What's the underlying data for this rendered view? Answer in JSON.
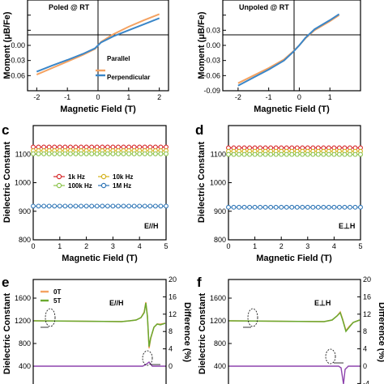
{
  "chart_data": [
    {
      "id": "a",
      "type": "line",
      "panel_label": "",
      "xlabel": "Magnetic Field (T)",
      "ylabel": "Moment (μB/Fe)",
      "xlim": [
        -2.3,
        2.3
      ],
      "ylim": [
        -0.09,
        0.09
      ],
      "xticks": [
        -2,
        -1,
        0,
        1,
        2
      ],
      "yticks": [
        -0.06,
        -0.03,
        0.0,
        0.03,
        0.06
      ],
      "ytick_labels": [
        "-0.06",
        "-0.03",
        "0.00",
        "",
        ""
      ],
      "annotations": [
        "Poled @ RT"
      ],
      "legend": [
        "Parallel",
        "Perpendicular"
      ],
      "series": [
        {
          "name": "Parallel",
          "color": "#f4a261",
          "x": [
            -2,
            -1.5,
            -1,
            -0.5,
            -0.1,
            0,
            0.1,
            0.5,
            1,
            1.5,
            2
          ],
          "y": [
            -0.058,
            -0.045,
            -0.032,
            -0.019,
            -0.007,
            0,
            0.007,
            0.022,
            0.037,
            0.05,
            0.062
          ]
        },
        {
          "name": "Perpendicular",
          "color": "#3a86c8",
          "x": [
            -2,
            -1.5,
            -1,
            -0.5,
            -0.1,
            0,
            0.1,
            0.5,
            1,
            1.5,
            2
          ],
          "y": [
            -0.052,
            -0.04,
            -0.029,
            -0.017,
            -0.006,
            0,
            0.006,
            0.018,
            0.03,
            0.042,
            0.054
          ]
        }
      ]
    },
    {
      "id": "b",
      "type": "line",
      "panel_label": "",
      "xlabel": "Magnetic Field (T)",
      "ylabel": "Moment (μB/Fe)",
      "xlim": [
        -2.5,
        2.0
      ],
      "ylim": [
        -0.09,
        0.09
      ],
      "xticks": [
        -2,
        -1,
        0,
        1
      ],
      "yticks": [
        -0.09,
        -0.06,
        -0.03,
        0.0,
        0.03,
        0.06
      ],
      "ytick_labels": [
        "-0.09",
        "-0.06",
        "-0.03",
        "0.00",
        "0.03",
        ""
      ],
      "annotations": [
        "Unpoled @ RT"
      ],
      "series": [
        {
          "name": "Parallel",
          "color": "#f4a261",
          "x": [
            -2,
            -1.5,
            -1,
            -0.5,
            -0.2,
            0,
            0.2,
            0.5,
            1,
            1.3
          ],
          "y": [
            -0.075,
            -0.06,
            -0.045,
            -0.028,
            -0.012,
            0,
            0.014,
            0.03,
            0.048,
            0.06
          ]
        },
        {
          "name": "Perpendicular",
          "color": "#3a86c8",
          "x": [
            -2,
            -1.5,
            -1,
            -0.5,
            -0.2,
            0,
            0.2,
            0.5,
            1,
            1.3
          ],
          "y": [
            -0.08,
            -0.064,
            -0.048,
            -0.03,
            -0.013,
            0,
            0.015,
            0.032,
            0.05,
            0.062
          ]
        }
      ]
    },
    {
      "id": "c",
      "type": "scatter",
      "panel_label": "c",
      "xlabel": "Magnetic Field (T)",
      "ylabel": "Dielectric Constant",
      "xlim": [
        0,
        5
      ],
      "ylim": [
        800,
        1200
      ],
      "xticks": [
        0,
        1,
        2,
        3,
        4,
        5
      ],
      "yticks": [
        800,
        900,
        1000,
        1100
      ],
      "annotations": [
        "E//H"
      ],
      "legend": [
        "1k Hz",
        "10k Hz",
        "100k Hz",
        "1M Hz"
      ],
      "series": [
        {
          "name": "1k Hz",
          "color": "#d62728",
          "value": 1125
        },
        {
          "name": "10k Hz",
          "color": "#d4b21b",
          "value": 1112
        },
        {
          "name": "100k Hz",
          "color": "#8bc34a",
          "value": 1101
        },
        {
          "name": "1M Hz",
          "color": "#2e75b6",
          "value": 918
        }
      ]
    },
    {
      "id": "d",
      "type": "scatter",
      "panel_label": "d",
      "xlabel": "Magnetic Field (T)",
      "ylabel": "Dielectric Constant",
      "xlim": [
        0,
        5
      ],
      "ylim": [
        800,
        1200
      ],
      "xticks": [
        0,
        1,
        2,
        3,
        4,
        5
      ],
      "yticks": [
        800,
        900,
        1000,
        1100
      ],
      "annotations": [
        "E⊥H"
      ],
      "series": [
        {
          "name": "1k Hz",
          "color": "#d62728",
          "value": 1122
        },
        {
          "name": "10k Hz",
          "color": "#d4b21b",
          "value": 1110
        },
        {
          "name": "100k Hz",
          "color": "#8bc34a",
          "value": 1099
        },
        {
          "name": "1M Hz",
          "color": "#2e75b6",
          "value": 914
        }
      ]
    },
    {
      "id": "e",
      "type": "line",
      "panel_label": "e",
      "ylabel": "Dielectric Constant",
      "ylabel_right": "Difference (%)",
      "yticks": [
        400,
        800,
        1200,
        1600
      ],
      "yticks_right": [
        0,
        4,
        8,
        12,
        16,
        20
      ],
      "ytick_right_labels": [
        "0",
        "4",
        "8",
        "12",
        "16",
        "20"
      ],
      "annotations": [
        "E//H"
      ],
      "legend": [
        "0T",
        "5T"
      ]
    },
    {
      "id": "f",
      "type": "line",
      "panel_label": "f",
      "ylabel": "Dielectric Constant",
      "ylabel_right": "Difference (%)",
      "yticks": [
        400,
        800,
        1200,
        1600
      ],
      "yticks_right": [
        -4,
        0,
        4,
        8,
        12,
        16,
        20
      ],
      "ytick_right_labels": [
        "-4",
        "0",
        "4",
        "8",
        "12",
        "16",
        "20"
      ],
      "annotations": [
        "E⊥H"
      ]
    }
  ]
}
